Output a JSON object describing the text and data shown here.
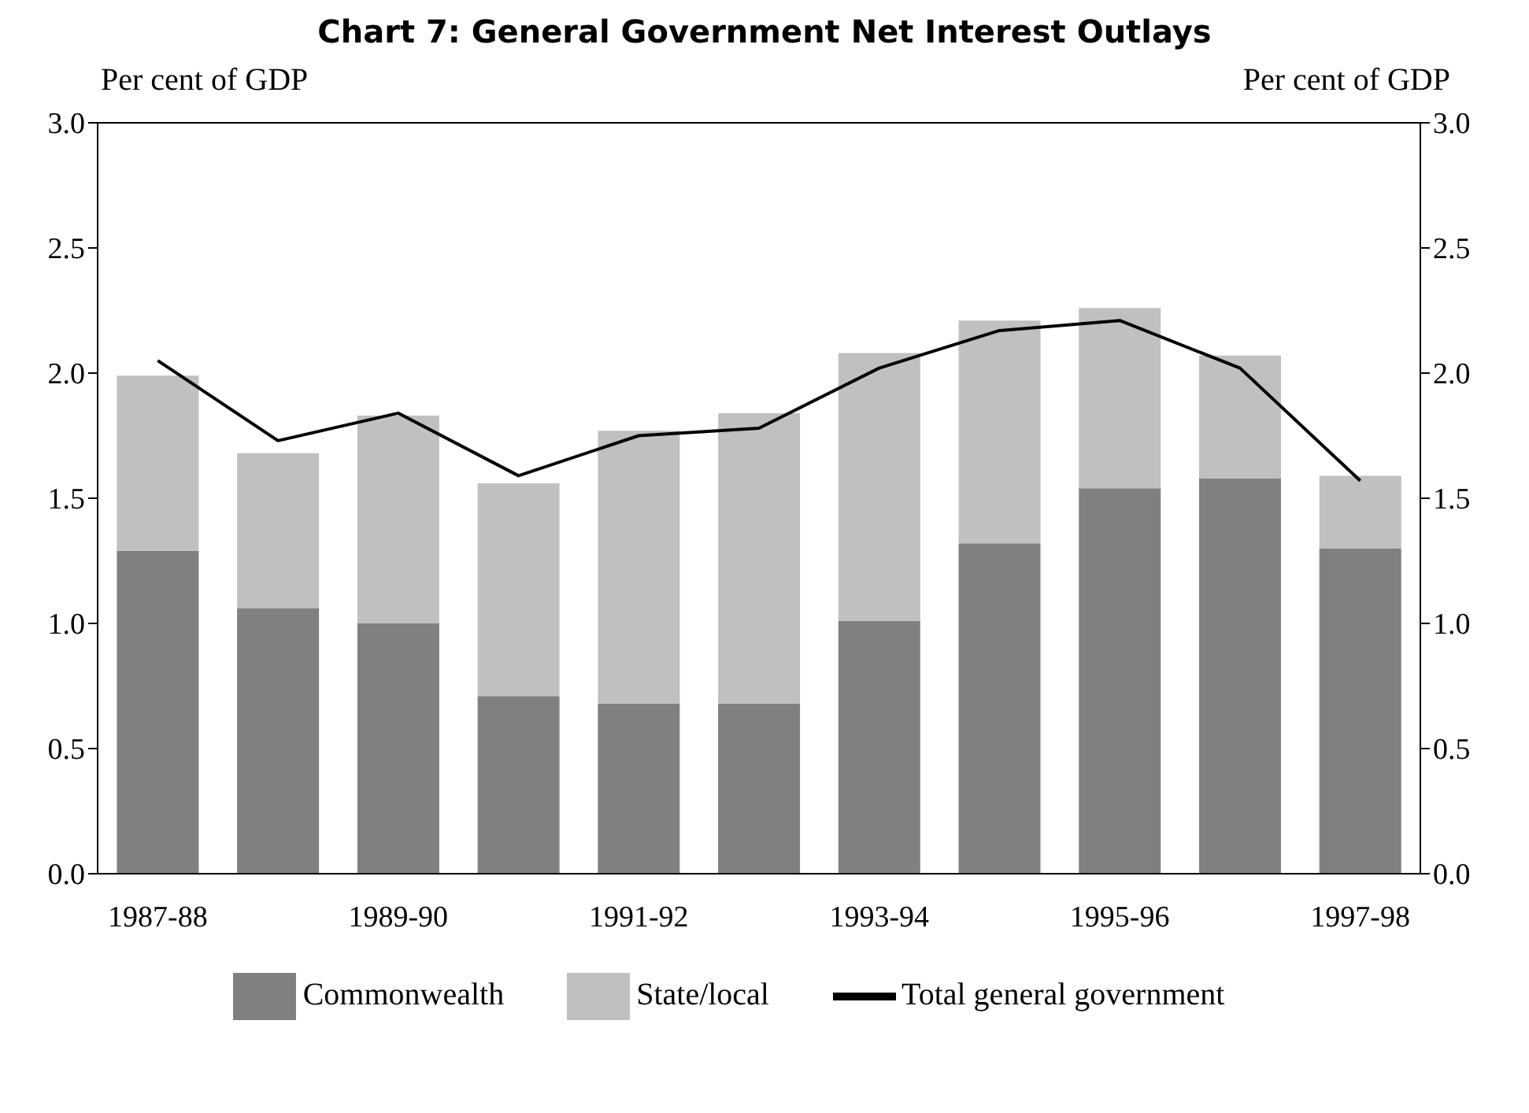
{
  "chart_data": {
    "type": "bar",
    "title": "Chart 7:  General Government Net Interest Outlays",
    "ylabel": "Per cent of GDP",
    "y2label": "Per cent of GDP",
    "categories": [
      "1987-88",
      null,
      "1989-90",
      null,
      "1991-92",
      null,
      "1993-94",
      null,
      "1995-96",
      null,
      "1997-98"
    ],
    "stacked": true,
    "series": [
      {
        "name": "Commonwealth",
        "color": "#808080",
        "values": [
          1.29,
          1.06,
          1.0,
          0.71,
          0.68,
          0.68,
          1.01,
          1.32,
          1.54,
          1.58,
          1.3
        ]
      },
      {
        "name": "State/local",
        "color": "#c0c0c0",
        "values": [
          0.7,
          0.62,
          0.83,
          0.85,
          1.09,
          1.16,
          1.07,
          0.89,
          0.72,
          0.49,
          0.29
        ]
      },
      {
        "name": "Total general government",
        "type": "line",
        "color": "#000000",
        "values": [
          2.05,
          1.73,
          1.84,
          1.59,
          1.75,
          1.78,
          2.02,
          2.17,
          2.21,
          2.02,
          1.57
        ]
      }
    ],
    "ylim": [
      0,
      3
    ],
    "yticks": [
      {
        "value": 0,
        "label": "0.0"
      },
      {
        "value": 0.5,
        "label": "0.5"
      },
      {
        "value": 1,
        "label": "1.0"
      },
      {
        "value": 1.5,
        "label": "1.5"
      },
      {
        "value": 2,
        "label": "2.0"
      },
      {
        "value": 2.5,
        "label": "2.5"
      },
      {
        "value": 3,
        "label": "3.0"
      }
    ],
    "y2lim": [
      0,
      3
    ],
    "y2ticks": [
      {
        "value": 0,
        "label": "0.0"
      },
      {
        "value": 0.5,
        "label": "0.5"
      },
      {
        "value": 1,
        "label": "1.0"
      },
      {
        "value": 1.5,
        "label": "1.5"
      },
      {
        "value": 2,
        "label": "2.0"
      },
      {
        "value": 2.5,
        "label": "2.5"
      },
      {
        "value": 3,
        "label": "3.0"
      }
    ],
    "grid": false,
    "legend": "bottom",
    "marker": "none",
    "line_style": "solid"
  }
}
